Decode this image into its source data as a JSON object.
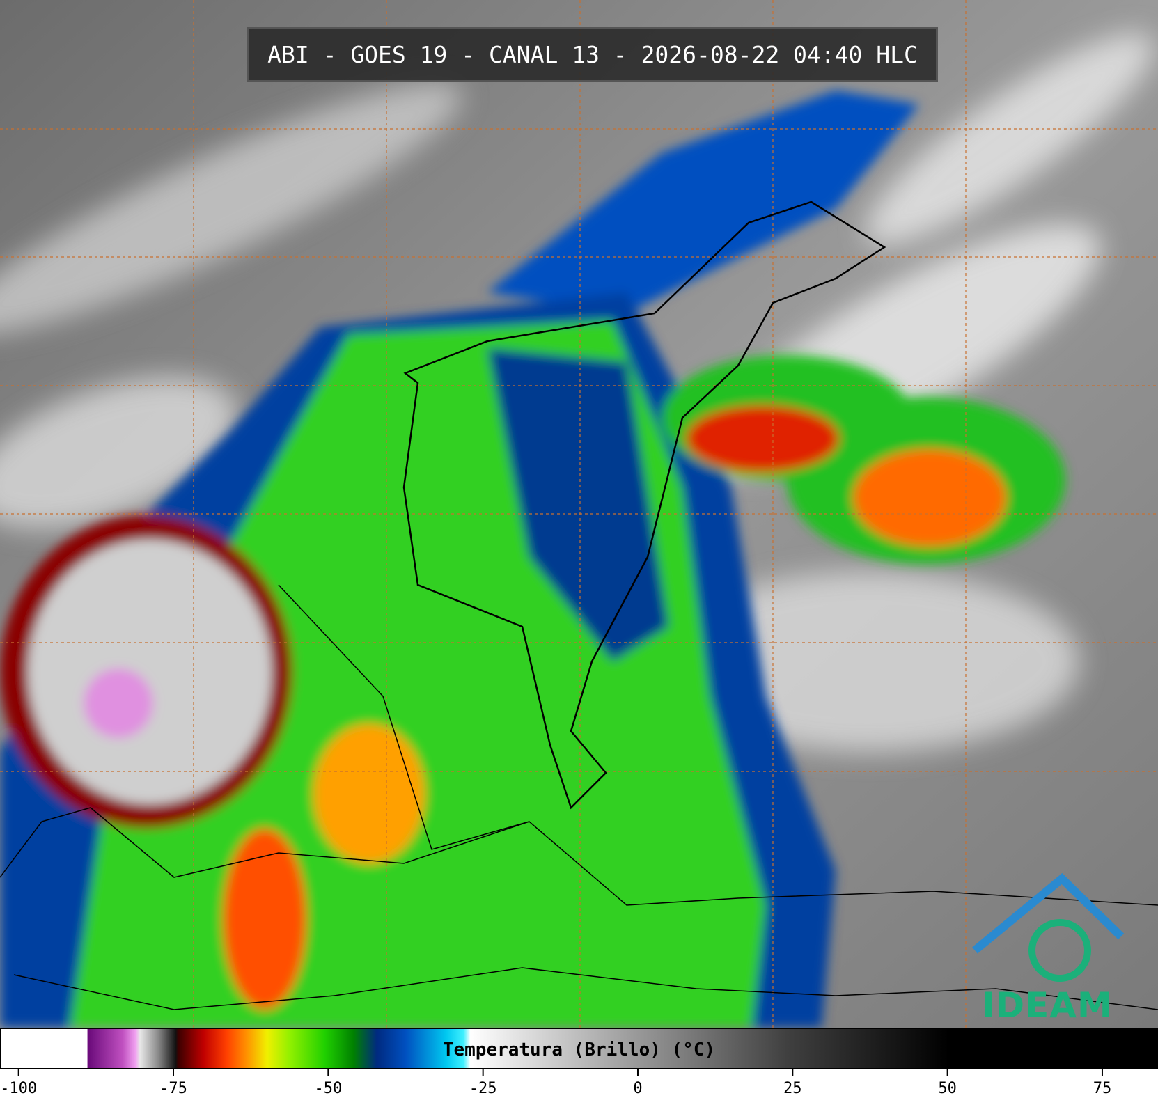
{
  "title": "ABI - GOES 19 - CANAL 13 - 2026-08-22 04:40 HLC",
  "logo": "IDEAM",
  "colorbar": {
    "label": "Temperatura (Brillo) (°C)",
    "xlim": [
      -103,
      84
    ],
    "xticks": [
      -100,
      -75,
      -50,
      -25,
      0,
      25,
      50,
      75
    ]
  }
}
